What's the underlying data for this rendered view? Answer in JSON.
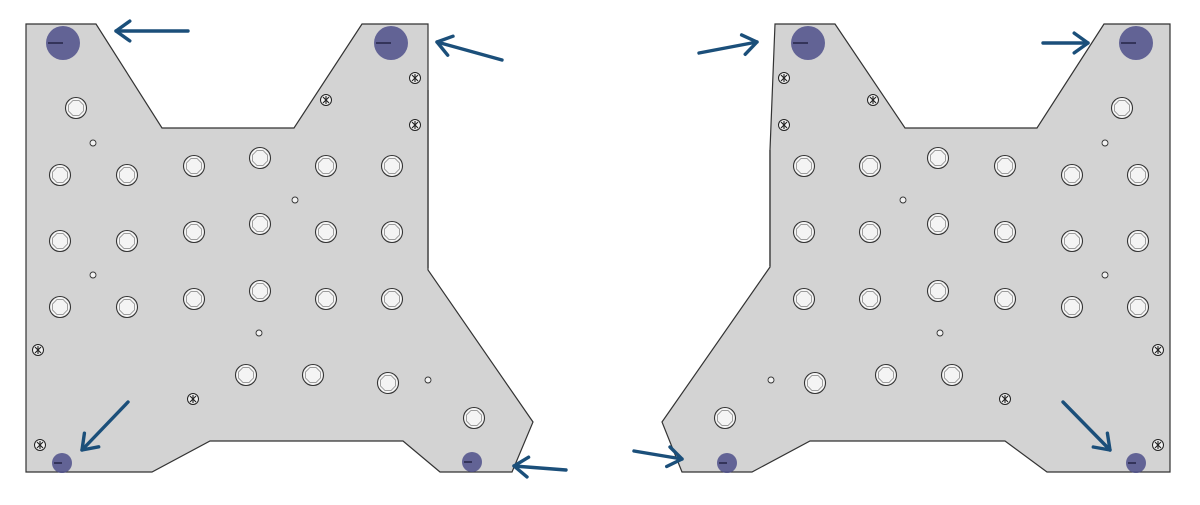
{
  "figure": {
    "background": "#ffffff",
    "plate_color": "#d3d3d3",
    "mount_color": "#4d4f8a",
    "arrow_color": "#1b4f7a",
    "plates": [
      {
        "side": "left",
        "mounting_points": 4,
        "arrows": 4
      },
      {
        "side": "right",
        "mounting_points": 4,
        "arrows": 4
      }
    ]
  }
}
